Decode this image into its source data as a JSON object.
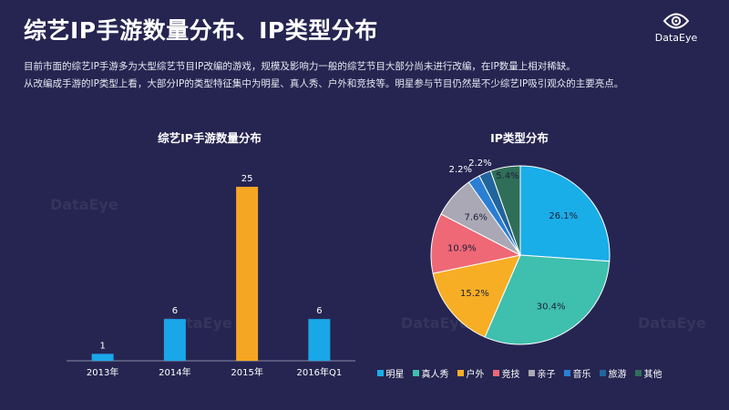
{
  "page": {
    "title": "综艺IP手游数量分布、IP类型分布",
    "description": [
      "目前市面的综艺IP手游多为大型综艺节目IP改编的游戏，规模及影响力一般的综艺节目大部分尚未进行改编，在IP数量上相对稀缺。",
      "从改编成手游的IP类型上看，大部分IP的类型特征集中为明星、真人秀、户外和竞技等。明星参与节目仍然是不少综艺IP吸引观众的主要亮点。"
    ],
    "brand": "DataEye",
    "watermark": "DataEye"
  },
  "chart_data": [
    {
      "type": "bar",
      "title": "综艺IP手游数量分布",
      "categories": [
        "2013年",
        "2014年",
        "2015年",
        "2016年Q1"
      ],
      "values": [
        1,
        6,
        25,
        6
      ],
      "colors": [
        "#1aa7e8",
        "#1aa7e8",
        "#f5a623",
        "#1aa7e8"
      ],
      "ylim": [
        0,
        25
      ]
    },
    {
      "type": "pie",
      "title": "IP类型分布",
      "labels": [
        "明星",
        "真人秀",
        "户外",
        "竞技",
        "亲子",
        "音乐",
        "旅游",
        "其他"
      ],
      "values": [
        26.1,
        30.4,
        15.2,
        10.9,
        7.6,
        2.2,
        2.2,
        5.4
      ],
      "value_labels": [
        "26.1%",
        "30.4%",
        "15.2%",
        "10.9%",
        "7.6%",
        "2.2%",
        "2.2%",
        "5.4%"
      ],
      "colors": [
        "#19aee8",
        "#3fbfae",
        "#f7ae25",
        "#ee6876",
        "#a9a8b4",
        "#2a7fd4",
        "#22649e",
        "#2f6e59"
      ],
      "legend": "bottom"
    }
  ]
}
